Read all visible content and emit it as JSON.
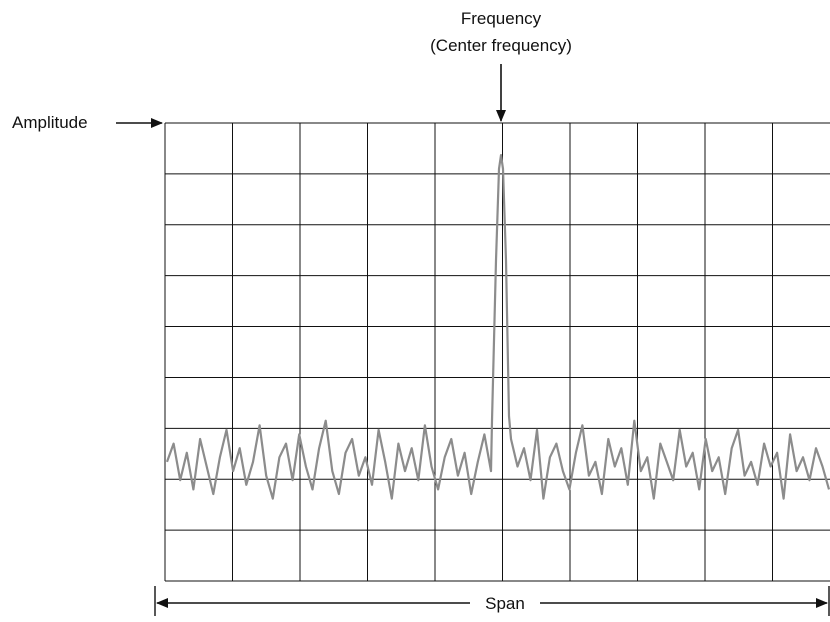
{
  "labels": {
    "frequency": "Frequency",
    "center_frequency": "(Center frequency)",
    "amplitude": "Amplitude",
    "span": "Span"
  },
  "colors": {
    "grid": "#111111",
    "trace": "#8c8c8c",
    "text": "#111111"
  },
  "graticule": {
    "columns": 10,
    "rows": 9
  },
  "trace": {
    "description_values": "normalized 0..1 amplitude vs normalized frequency",
    "noise_floor": [
      0.26,
      0.3,
      0.22,
      0.28,
      0.2,
      0.31,
      0.25,
      0.19,
      0.27,
      0.33,
      0.24,
      0.29,
      0.21,
      0.26,
      0.34,
      0.23,
      0.18,
      0.27,
      0.3,
      0.22,
      0.32,
      0.25,
      0.2,
      0.29,
      0.35,
      0.24,
      0.19,
      0.28,
      0.31,
      0.23,
      0.27,
      0.21,
      0.33,
      0.26,
      0.18,
      0.3,
      0.24,
      0.29,
      0.22,
      0.34,
      0.25,
      0.2,
      0.27,
      0.31,
      0.23,
      0.28,
      0.19,
      0.26,
      0.32,
      0.24
    ],
    "noise_floor_right": [
      0.31,
      0.25,
      0.29,
      0.22,
      0.33,
      0.18,
      0.27,
      0.3,
      0.24,
      0.2,
      0.28,
      0.34,
      0.23,
      0.26,
      0.19,
      0.31,
      0.25,
      0.29,
      0.21,
      0.35,
      0.24,
      0.27,
      0.18,
      0.3,
      0.26,
      0.22,
      0.33,
      0.25,
      0.28,
      0.2,
      0.31,
      0.24,
      0.27,
      0.19,
      0.29,
      0.33,
      0.23,
      0.26,
      0.21,
      0.3,
      0.25,
      0.28,
      0.18,
      0.32,
      0.24,
      0.27,
      0.22,
      0.29,
      0.25,
      0.2
    ],
    "peak": 0.93
  }
}
